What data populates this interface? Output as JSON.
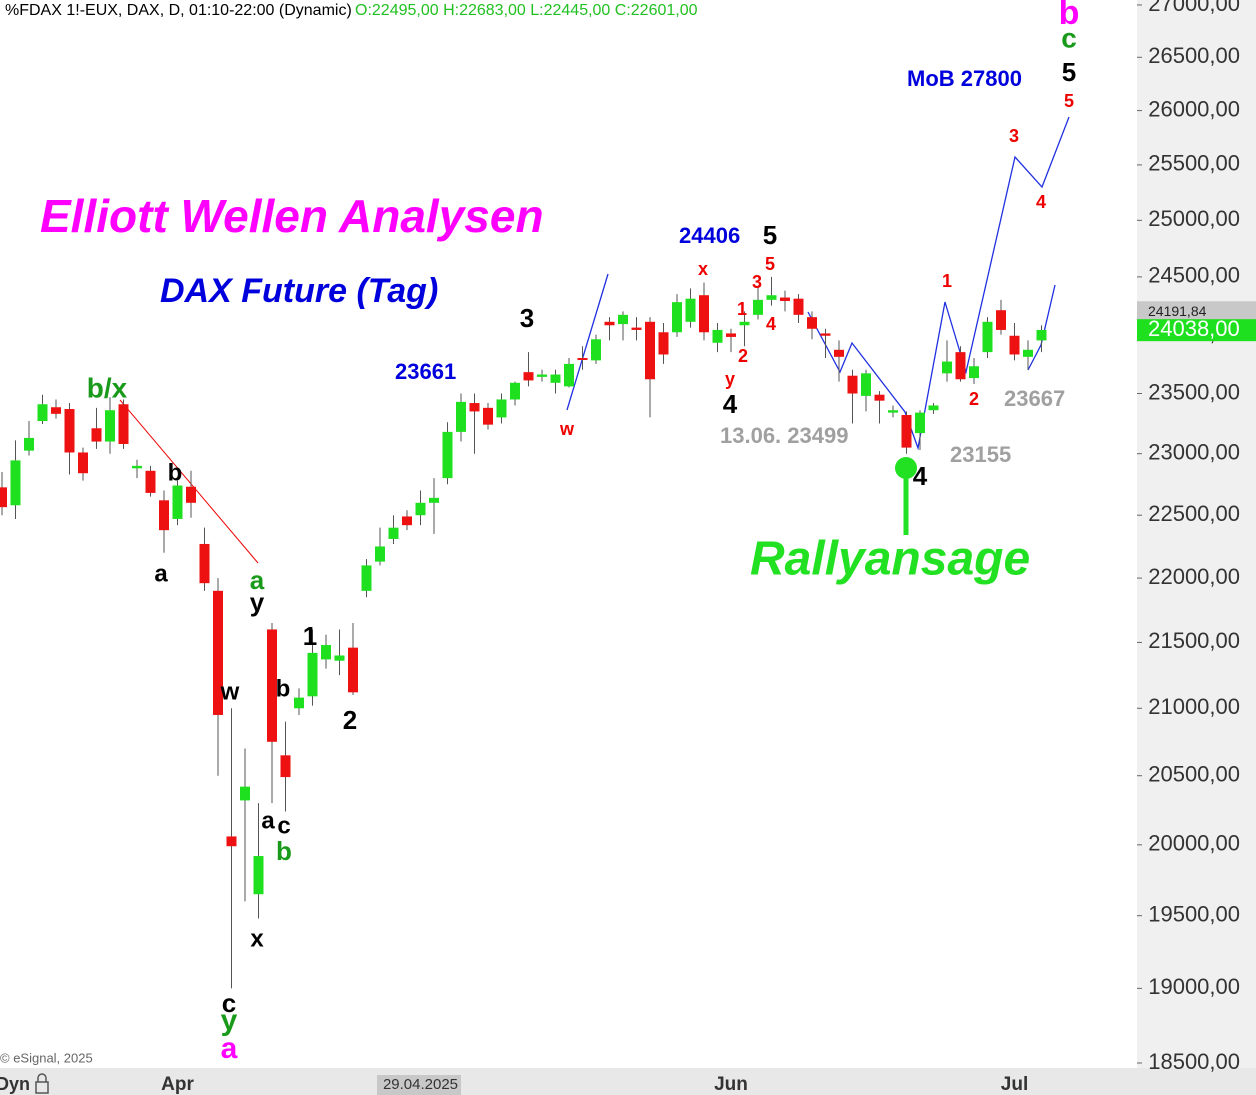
{
  "chart_data": {
    "type": "candlestick",
    "header": "%FDAX 1!-EUX, DAX, D, 01:10-22:00 (Dynamic)",
    "ohlc_text": "O:22495,00 H:22683,00 L:22445,00 C:22601,00",
    "copyright": "© eSignal, 2025",
    "bottom_left_label": "Dyn",
    "log_scale": true,
    "up_color": "#1ee01e",
    "down_color": "#ee1111",
    "categories": [
      null,
      null,
      null,
      null,
      null,
      null,
      null,
      null,
      null,
      null,
      null,
      null,
      null,
      "Apr",
      null,
      null,
      null,
      null,
      null,
      null,
      null,
      null,
      null,
      null,
      null,
      null,
      null,
      null,
      null,
      null,
      null,
      "29.04.2025",
      null,
      null,
      null,
      null,
      null,
      null,
      null,
      null,
      null,
      null,
      null,
      null,
      null,
      null,
      null,
      null,
      null,
      null,
      null,
      null,
      null,
      null,
      "Jun",
      null,
      null,
      null,
      null,
      null,
      null,
      null,
      null,
      null,
      null,
      null,
      null,
      null,
      null,
      null,
      null,
      null,
      null,
      null,
      null,
      "Jul",
      null,
      null
    ],
    "open": [
      22725,
      22580,
      23025,
      23270,
      23385,
      23370,
      23010,
      23210,
      23100,
      23410,
      22880,
      22860,
      22620,
      22470,
      22730,
      22270,
      21900,
      20060,
      20320,
      19650,
      21600,
      20650,
      21000,
      21090,
      21370,
      21360,
      21460,
      21900,
      22130,
      22310,
      22490,
      22500,
      22600,
      22800,
      23180,
      23420,
      23380,
      23300,
      23450,
      23680,
      23640,
      23590,
      23560,
      23800,
      23780,
      24110,
      24090,
      24060,
      24110,
      24020,
      24020,
      24110,
      24340,
      23930,
      24010,
      24080,
      24170,
      24300,
      24320,
      24310,
      24150,
      24010,
      23870,
      23650,
      23480,
      23490,
      23340,
      23320,
      23170,
      23360,
      23670,
      23850,
      23630,
      23850,
      24210,
      23990,
      23810,
      23950
    ],
    "high": [
      22850,
      23110,
      23270,
      23490,
      23450,
      23420,
      23050,
      23380,
      23470,
      23450,
      22950,
      22900,
      22700,
      22780,
      22860,
      22400,
      22000,
      21000,
      20700,
      20300,
      21650,
      20900,
      21150,
      21600,
      21560,
      21600,
      21650,
      22150,
      22400,
      22500,
      22540,
      22700,
      22800,
      23260,
      23500,
      23500,
      23420,
      23500,
      23600,
      23850,
      23700,
      23700,
      23800,
      23900,
      24000,
      24150,
      24200,
      24150,
      24150,
      24100,
      24350,
      24400,
      24450,
      24100,
      24050,
      24200,
      24420,
      24500,
      24380,
      24350,
      24200,
      24050,
      23950,
      23700,
      23700,
      23520,
      23400,
      23350,
      23360,
      23420,
      23950,
      23900,
      23800,
      24150,
      24300,
      24100,
      23950,
      24080
    ],
    "low": [
      22500,
      22470,
      22985,
      23245,
      23290,
      22830,
      22780,
      23040,
      23000,
      23040,
      22800,
      22650,
      22200,
      22420,
      22480,
      21900,
      20500,
      19000,
      19600,
      19480,
      20300,
      20240,
      20950,
      21020,
      21300,
      21250,
      21100,
      21850,
      22100,
      22270,
      22380,
      22420,
      22350,
      22750,
      23100,
      23000,
      23200,
      23250,
      23400,
      23560,
      23600,
      23500,
      23550,
      23700,
      23750,
      23950,
      23950,
      23950,
      23300,
      23750,
      23980,
      24060,
      23950,
      23850,
      23850,
      23900,
      24130,
      24250,
      24200,
      24100,
      23960,
      23800,
      23600,
      23250,
      23350,
      23250,
      23300,
      23000,
      23030,
      23330,
      23600,
      23600,
      23580,
      23800,
      24000,
      23780,
      23700,
      23850
    ],
    "close": [
      22565,
      22945,
      23130,
      23410,
      23330,
      23010,
      22840,
      23100,
      23360,
      23080,
      22900,
      22680,
      22380,
      22740,
      22600,
      21960,
      20950,
      19990,
      20420,
      19920,
      20750,
      20490,
      21080,
      21420,
      21480,
      21400,
      21120,
      22100,
      22250,
      22400,
      22420,
      22600,
      22640,
      23180,
      23430,
      23350,
      23240,
      23450,
      23590,
      23610,
      23660,
      23660,
      23750,
      23790,
      23960,
      24080,
      24170,
      24040,
      23620,
      23830,
      24280,
      24310,
      24020,
      24040,
      23980,
      24110,
      24300,
      24340,
      24290,
      24170,
      24050,
      23990,
      23810,
      23500,
      23670,
      23440,
      23360,
      23050,
      23340,
      23400,
      23770,
      23620,
      23730,
      24110,
      24040,
      23830,
      23870,
      24040
    ],
    "ylim": [
      18467,
      27048
    ],
    "yticks": [
      {
        "value": 18500,
        "label": "18500,00"
      },
      {
        "value": 19000,
        "label": "19000,00"
      },
      {
        "value": 19500,
        "label": "19500,00"
      },
      {
        "value": 20000,
        "label": "20000,00"
      },
      {
        "value": 20500,
        "label": "20500,00"
      },
      {
        "value": 21000,
        "label": "21000,00"
      },
      {
        "value": 21500,
        "label": "21500,00"
      },
      {
        "value": 22000,
        "label": "22000,00"
      },
      {
        "value": 22500,
        "label": "22500,00"
      },
      {
        "value": 23000,
        "label": "23000,00"
      },
      {
        "value": 23500,
        "label": "23500,00"
      },
      {
        "value": 24000,
        "label": "24000,00"
      },
      {
        "value": 24500,
        "label": "24500,00"
      },
      {
        "value": 25000,
        "label": "25000,00"
      },
      {
        "value": 25500,
        "label": "25500,00"
      },
      {
        "value": 26000,
        "label": "26000,00"
      },
      {
        "value": 26500,
        "label": "26500,00"
      },
      {
        "value": 27000,
        "label": "27000,00"
      }
    ],
    "price_labels": [
      {
        "value": 24191.84,
        "label": "24191,84",
        "color": "#c8c8c8"
      },
      {
        "value": 24038,
        "label": "24038,00",
        "color": "#1ee01e"
      }
    ],
    "annotations": [
      {
        "text": "Elliott Wellen Analysen",
        "color": "#ff00ff"
      },
      {
        "text": "DAX Future (Tag)",
        "color": "#0000dd"
      },
      {
        "text": "Rallyansage",
        "color": "#22e022"
      },
      {
        "text": "MoB 27800",
        "color": "#0000dd"
      },
      {
        "text": "b",
        "color": "#ff00ff"
      },
      {
        "text": "c",
        "color": "#1a9a1a"
      },
      {
        "text": "5",
        "color": "#000000"
      },
      {
        "text": "5",
        "color": "#ee0000"
      },
      {
        "text": "3",
        "color": "#ee0000"
      },
      {
        "text": "4",
        "color": "#ee0000"
      },
      {
        "text": "1",
        "color": "#ee0000"
      },
      {
        "text": "2",
        "color": "#ee0000"
      },
      {
        "text": "24406",
        "color": "#0000dd"
      },
      {
        "text": "5",
        "color": "#000000"
      },
      {
        "text": "x",
        "color": "#ee0000"
      },
      {
        "text": "5",
        "color": "#ee0000"
      },
      {
        "text": "3",
        "color": "#ee0000"
      },
      {
        "text": "1",
        "color": "#ee0000"
      },
      {
        "text": "4",
        "color": "#ee0000"
      },
      {
        "text": "2",
        "color": "#ee0000"
      },
      {
        "text": "y",
        "color": "#ee0000"
      },
      {
        "text": "4",
        "color": "#000000"
      },
      {
        "text": "w",
        "color": "#ee0000"
      },
      {
        "text": "13.06. 23499",
        "color": "#a0a0a0"
      },
      {
        "text": "23667",
        "color": "#a0a0a0"
      },
      {
        "text": "23155",
        "color": "#a0a0a0"
      },
      {
        "text": "4",
        "color": "#000000"
      },
      {
        "text": "3",
        "color": "#000000"
      },
      {
        "text": "23661",
        "color": "#0000dd"
      },
      {
        "text": "b/x",
        "color": "#1a9a1a"
      },
      {
        "text": "b",
        "color": "#000000"
      },
      {
        "text": "a",
        "color": "#000000"
      },
      {
        "text": "a",
        "color": "#1a9a1a"
      },
      {
        "text": "y",
        "color": "#000000"
      },
      {
        "text": "w",
        "color": "#000000"
      },
      {
        "text": "1",
        "color": "#000000"
      },
      {
        "text": "b",
        "color": "#000000"
      },
      {
        "text": "2",
        "color": "#000000"
      },
      {
        "text": "a",
        "color": "#000000"
      },
      {
        "text": "c",
        "color": "#000000"
      },
      {
        "text": "b",
        "color": "#1a9a1a"
      },
      {
        "text": "x",
        "color": "#000000"
      },
      {
        "text": "c",
        "color": "#000000"
      },
      {
        "text": "y",
        "color": "#1a9a1a"
      },
      {
        "text": "a",
        "color": "#ff00ff"
      }
    ]
  }
}
